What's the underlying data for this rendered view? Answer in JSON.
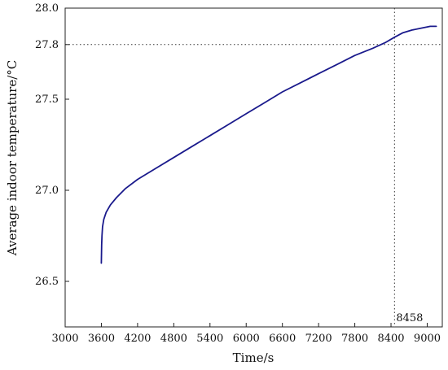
{
  "chart_data": {
    "type": "line",
    "xlabel": "Time/s",
    "ylabel": "Average indoor temperature/°C",
    "xlim": [
      3000,
      9250
    ],
    "ylim": [
      26.25,
      28.0
    ],
    "x_ticks": [
      3000,
      3600,
      4200,
      4800,
      5400,
      6000,
      6600,
      7200,
      7800,
      8400,
      9000
    ],
    "y_ticks": [
      26.5,
      27.0,
      27.5,
      27.8,
      28.0
    ],
    "y_tick_labels": [
      "26.5",
      "27.0",
      "27.5",
      "27.8",
      "28.0"
    ],
    "grid": false,
    "series": [
      {
        "color": "#1a1a8c",
        "x": [
          3600,
          3605,
          3610,
          3620,
          3640,
          3680,
          3750,
          3850,
          4000,
          4200,
          4500,
          4800,
          5100,
          5400,
          5700,
          6000,
          6300,
          6600,
          6900,
          7200,
          7500,
          7800,
          8100,
          8300,
          8458,
          8600,
          8750,
          8900,
          9050,
          9150
        ],
        "y": [
          26.6,
          26.7,
          26.75,
          26.8,
          26.84,
          26.88,
          26.92,
          26.96,
          27.01,
          27.06,
          27.12,
          27.18,
          27.24,
          27.3,
          27.36,
          27.42,
          27.48,
          27.54,
          27.59,
          27.64,
          27.69,
          27.74,
          27.78,
          27.81,
          27.84,
          27.865,
          27.88,
          27.89,
          27.9,
          27.9
        ]
      }
    ],
    "annotations": {
      "hline": {
        "y": 27.8,
        "style": "dotted"
      },
      "vline": {
        "x": 8458,
        "style": "dotted",
        "label": "8458"
      }
    }
  }
}
